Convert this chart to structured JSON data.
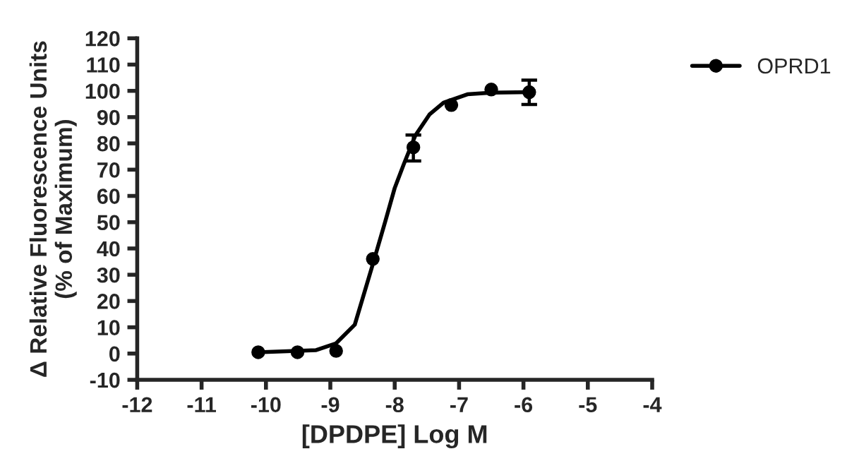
{
  "chart_data": {
    "type": "scatter",
    "xlabel": "[DPDPE] Log M",
    "ylabel": "Δ Relative Fluorescence Units\n(% of Maximum)",
    "series": [
      {
        "name": "OPRD1",
        "marker": "circle",
        "color": "#000000",
        "x": [
          -10.12,
          -9.51,
          -8.91,
          -8.34,
          -7.71,
          -7.12,
          -6.5,
          -5.91
        ],
        "values": [
          0.5,
          0.5,
          1,
          36,
          78.5,
          94.6,
          100.5,
          99.5
        ],
        "errors": [
          null,
          null,
          null,
          null,
          [
            73.3,
            83.2
          ],
          null,
          null,
          [
            94.8,
            104.1
          ]
        ]
      },
      {
        "type": "line",
        "marker": "none",
        "color": "#000000",
        "x": [
          -10.12,
          -9.22,
          -8.91,
          -8.62,
          -8.34,
          -8.15,
          -8.0,
          -7.86,
          -7.68,
          -7.46,
          -7.24,
          -6.87,
          -6.5,
          -5.91
        ],
        "values": [
          0.5,
          1.3,
          3.9,
          11,
          34,
          50,
          63,
          72,
          83,
          91,
          95.5,
          98.7,
          99.3,
          99.5
        ]
      }
    ],
    "xlim": [
      -12,
      -4
    ],
    "xticks": [
      -12,
      -11,
      -10,
      -9,
      -8,
      -7,
      -6,
      -5,
      -4
    ],
    "ylim": [
      -10,
      120
    ],
    "yticks": [
      -10,
      0,
      10,
      20,
      30,
      40,
      50,
      60,
      70,
      80,
      90,
      100,
      110,
      120
    ],
    "line_style": "solid",
    "grid": false,
    "legend": "top right"
  }
}
